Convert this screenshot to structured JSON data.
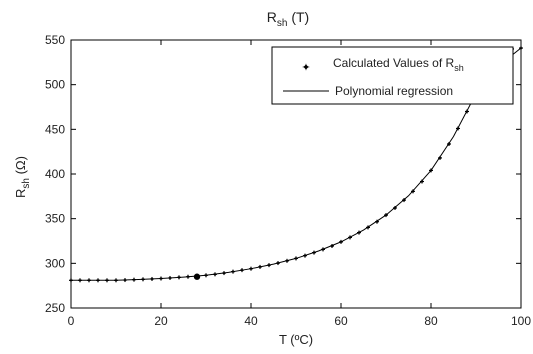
{
  "chart_data": {
    "type": "scatter",
    "title": {
      "main": "R",
      "sub": "sh",
      "rest": " (T)"
    },
    "xlabel": "T (ºC)",
    "ylabel": {
      "main": "R",
      "sub": "sh",
      "rest": " (Ω)"
    },
    "xlim": [
      0,
      100
    ],
    "ylim": [
      250,
      550
    ],
    "xticks": [
      0,
      20,
      40,
      60,
      80,
      100
    ],
    "yticks": [
      250,
      300,
      350,
      400,
      450,
      500,
      550
    ],
    "grid": false,
    "legend_position": "top-right",
    "legend": [
      {
        "kind": "marker",
        "main": "Calculated Values of R",
        "sub": "sh"
      },
      {
        "kind": "line",
        "main": "Polynomial regression",
        "sub": ""
      }
    ],
    "series": [
      {
        "kind": "points",
        "x": [
          0,
          2,
          4,
          6,
          8,
          10,
          12,
          14,
          16,
          18,
          20,
          22,
          24,
          26,
          28,
          30,
          32,
          34,
          36,
          38,
          40,
          42,
          44,
          46,
          48,
          50,
          52,
          54,
          56,
          58,
          60,
          62,
          64,
          66,
          68,
          70,
          72,
          74,
          76,
          78,
          80,
          82,
          84,
          86,
          88,
          90,
          92,
          94,
          96,
          98,
          100
        ],
        "y": [
          281,
          281,
          281,
          281,
          281,
          281,
          281.3,
          281.7,
          282.1,
          282.5,
          283,
          283.6,
          284.3,
          285,
          285.7,
          286.6,
          287.7,
          289.1,
          290.7,
          292.4,
          294,
          296,
          298,
          300.3,
          302.8,
          305.5,
          308.6,
          312,
          315.6,
          319.4,
          324,
          329,
          334.4,
          340.2,
          346.6,
          354,
          362,
          370.8,
          380.6,
          391.6,
          404,
          418,
          433.6,
          451,
          470,
          490,
          511,
          532,
          540,
          540,
          541
        ]
      },
      {
        "kind": "line",
        "x": [
          0,
          5,
          10,
          15,
          20,
          25,
          30,
          35,
          40,
          45,
          50,
          55,
          60,
          65,
          70,
          75,
          80,
          85,
          90,
          95,
          100
        ],
        "y": [
          281,
          281,
          281,
          281.9,
          283,
          284.6,
          286.6,
          289.9,
          294,
          299.1,
          305.5,
          313.8,
          324,
          337.3,
          354,
          375.6,
          404,
          442,
          490,
          521,
          541
        ]
      }
    ],
    "highlight_point": {
      "x": 28,
      "y": 285
    }
  }
}
